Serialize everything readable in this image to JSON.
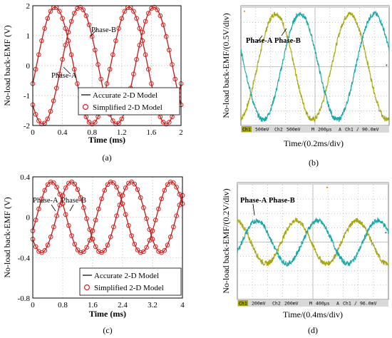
{
  "chart_data": [
    {
      "type": "line",
      "panel_label": "(a)",
      "xlabel": "Time (ms)",
      "ylabel": "No-load back-EMF (V)",
      "xlim": [
        0,
        2
      ],
      "ylim": [
        -2,
        2
      ],
      "xticks": [
        "0",
        "0.4",
        "0.8",
        "1.2",
        "1.6",
        "2"
      ],
      "yticks": [
        "-2",
        "-1",
        "0",
        "1",
        "2"
      ],
      "grid": true,
      "legend_position": "bottom-right",
      "annotations": [
        "Phase-A",
        "Phase-B"
      ],
      "series": [
        {
          "name": "Accurate 2-D Model",
          "style": "line",
          "waveform": "sine",
          "amplitude": 1.95,
          "period": 1.0,
          "peak_at": 0.3,
          "phase": "A"
        },
        {
          "name": "Accurate 2-D Model",
          "style": "line",
          "waveform": "sine",
          "amplitude": 1.95,
          "period": 1.0,
          "peak_at": 0.633,
          "phase": "B"
        },
        {
          "name": "Simplified 2-D Model",
          "style": "marker",
          "waveform": "sine",
          "amplitude": 1.95,
          "period": 1.0,
          "peak_at": 0.3,
          "phase": "A"
        },
        {
          "name": "Simplified 2-D Model",
          "style": "marker",
          "waveform": "sine",
          "amplitude": 1.95,
          "period": 1.0,
          "peak_at": 0.633,
          "phase": "B"
        }
      ]
    },
    {
      "type": "line",
      "panel_label": "(b)",
      "xlabel": "Time/(0.2ms/div)",
      "ylabel": "No-load back-EMF/(0.5V/div)",
      "xlim": [
        0,
        10
      ],
      "ylim": [
        -4,
        4
      ],
      "grid": true,
      "annotations": [
        "Phase-A",
        "Phase-B"
      ],
      "scope_status": [
        "Ch1",
        "500mV",
        "Ch2",
        "500mV",
        "M",
        "200µs",
        "A",
        "Ch1",
        "∕",
        "90.0mV"
      ],
      "series": [
        {
          "phase": "A",
          "color": "#a6a60e",
          "waveform": "sine",
          "amplitude_div": 3.6,
          "period_div": 5.0,
          "peak_at_div": 2.35
        },
        {
          "phase": "B",
          "color": "#18a8a8",
          "waveform": "sine",
          "amplitude_div": 3.6,
          "period_div": 5.0,
          "peak_at_div": 4.0
        }
      ]
    },
    {
      "type": "line",
      "panel_label": "(c)",
      "xlabel": "Time (ms)",
      "ylabel": "No-load back-EMF (V)",
      "xlim": [
        0,
        4
      ],
      "ylim": [
        -0.8,
        0.4
      ],
      "xticks": [
        "0",
        "0.8",
        "1.6",
        "2.4",
        "3.2",
        "4"
      ],
      "yticks": [
        "-0.8",
        "-0.4",
        "0",
        "0.4"
      ],
      "grid": true,
      "legend_position": "bottom-right",
      "annotations": [
        "Phase-A",
        "Phase-B"
      ],
      "series": [
        {
          "name": "Accurate 2-D Model",
          "style": "line",
          "waveform": "sine",
          "amplitude": 0.35,
          "period": 1.6,
          "peak_at": 0.5,
          "phase": "A"
        },
        {
          "name": "Accurate 2-D Model",
          "style": "line",
          "waveform": "sine",
          "amplitude": 0.35,
          "period": 1.6,
          "peak_at": 1.03,
          "phase": "B"
        },
        {
          "name": "Simplified 2-D Model",
          "style": "marker",
          "waveform": "sine",
          "amplitude": 0.35,
          "period": 1.6,
          "peak_at": 0.5,
          "phase": "A"
        },
        {
          "name": "Simplified 2-D Model",
          "style": "marker",
          "waveform": "sine",
          "amplitude": 0.35,
          "period": 1.6,
          "peak_at": 1.03,
          "phase": "B"
        }
      ]
    },
    {
      "type": "line",
      "panel_label": "(d)",
      "xlabel": "Time/(0.4ms/div)",
      "ylabel": "No-load back-EMF/(0.2V/div)",
      "xlim": [
        0,
        10
      ],
      "ylim": [
        -4,
        4
      ],
      "grid": true,
      "annotations": [
        "Phase-A",
        "Phase-B"
      ],
      "scope_status": [
        "Ch1",
        "200mV",
        "Ch2",
        "200mV",
        "M",
        "400µs",
        "A",
        "Ch1",
        "∕",
        "96.0mV"
      ],
      "series": [
        {
          "phase": "A",
          "color": "#a6a60e",
          "waveform": "sine",
          "amplitude_div": 1.5,
          "period_div": 4.0,
          "peak_at_div": 3.9
        },
        {
          "phase": "B",
          "color": "#18a8a8",
          "waveform": "sine",
          "amplitude_div": 1.5,
          "period_div": 4.0,
          "peak_at_div": 1.3
        }
      ]
    }
  ],
  "colors": {
    "sim_line": "#000000",
    "sim_marker": "#e02020",
    "sim_curve": "#c41818",
    "scope_bg": "#ffffff",
    "scope_grid": "#b0b0b0",
    "phase_a": "#a6a60e",
    "phase_b": "#18a8a8",
    "scope_bar": "#d8d8d8"
  }
}
